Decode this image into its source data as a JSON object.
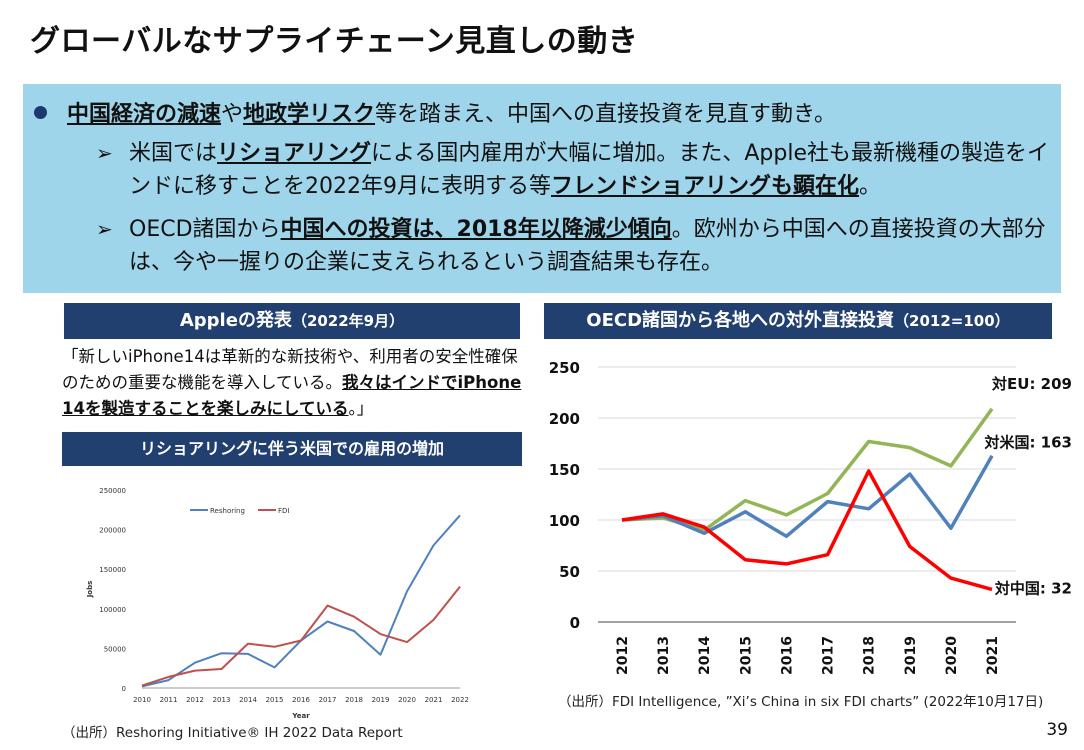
{
  "title": "グローバルなサプライチェーン見直しの動き",
  "bullet1": {
    "em1": "中国経済の減速",
    "t1": "や",
    "em2": "地政学リスク",
    "t2": "等を踏まえ、中国への直接投資を見直す動き。"
  },
  "bullet2": {
    "arrow": "➢",
    "t1": "米国では",
    "em1": "リショアリング",
    "t2": "による国内雇用が大幅に増加。また、Apple社も最新機種の製造をインドに移すことを2022年9月に表明する等",
    "em2": "フレンドショアリングも顕在化",
    "t3": "。"
  },
  "bullet3": {
    "arrow": "➢",
    "t1": "OECD諸国から",
    "em1": "中国への投資は、2018年以降減少傾向",
    "t2": "。欧州から中国への直接投資の大部分は、今や一握りの企業に支えられるという調査結果も存在。"
  },
  "apple_panel": {
    "heading": "Appleの発表",
    "heading_sub": "（2022年9月）",
    "quote_t1": "「新しいiPhone14は革新的な新技術や、利用者の安全性確保のための重要な機能を導入している。",
    "quote_em": "我々はインドでiPhone 14を製造することを楽しみにしている",
    "quote_t2": "。」"
  },
  "reshoring_panel": {
    "heading": "リショアリングに伴う米国での雇用の増加",
    "source": "（出所）Reshoring Initiative®  IH 2022 Data Report"
  },
  "oecd_panel": {
    "heading": "OECD諸国から各地への対外直接投資",
    "heading_sub": "（2012=100）",
    "source": "（出所）FDI Intelligence, ”Xi’s China in six FDI charts” (2022年10月17日)"
  },
  "page_number": "39",
  "chart_data": [
    {
      "type": "line",
      "title": "",
      "xlabel": "Year",
      "ylabel": "Jobs",
      "x": [
        "2010",
        "2011",
        "2012",
        "2013",
        "2014",
        "2015",
        "2016",
        "2017",
        "2018",
        "2019",
        "2020",
        "2021",
        "2022"
      ],
      "ylim": [
        0,
        250000
      ],
      "yticks": [
        "0",
        "50000",
        "100000",
        "150000",
        "200000",
        "250000"
      ],
      "legend_position": "top",
      "series": [
        {
          "name": "Reshoring",
          "color": "#4f81bd",
          "values": [
            2000,
            10000,
            32000,
            44000,
            43000,
            26000,
            60000,
            84000,
            72000,
            42000,
            122000,
            180000,
            218000
          ]
        },
        {
          "name": "FDI",
          "color": "#c0504d",
          "values": [
            3000,
            14000,
            22000,
            24000,
            56000,
            52000,
            60000,
            104000,
            90000,
            68000,
            58000,
            86000,
            128000
          ]
        }
      ]
    },
    {
      "type": "line",
      "title": "",
      "x": [
        "2012",
        "2013",
        "2014",
        "2015",
        "2016",
        "2017",
        "2018",
        "2019",
        "2020",
        "2021"
      ],
      "ylim": [
        0,
        250
      ],
      "yticks": [
        "0",
        "50",
        "100",
        "150",
        "200",
        "250"
      ],
      "grid": true,
      "series": [
        {
          "name": "対EU",
          "label": "対EU: 209",
          "color": "#92b555",
          "values": [
            100,
            102,
            90,
            119,
            105,
            126,
            177,
            171,
            153,
            209
          ]
        },
        {
          "name": "対米国",
          "label": "対米国: 163",
          "color": "#4f81bd",
          "values": [
            100,
            104,
            87,
            108,
            84,
            118,
            111,
            145,
            92,
            163
          ]
        },
        {
          "name": "対中国",
          "label": "対中国: 32",
          "color": "#ff0000",
          "values": [
            100,
            106,
            93,
            61,
            57,
            66,
            148,
            74,
            43,
            32
          ]
        }
      ]
    }
  ]
}
